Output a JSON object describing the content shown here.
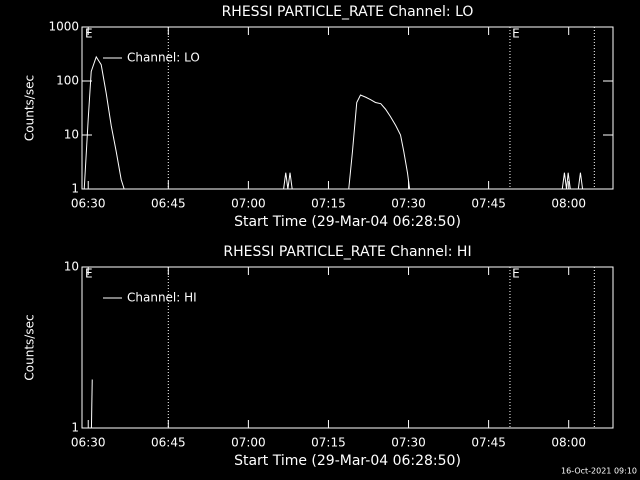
{
  "footer": "16-Oct-2021 09:10",
  "chart_data": [
    {
      "type": "line",
      "title": "RHESSI PARTICLE_RATE Channel: LO",
      "xlabel": "Start Time (29-Mar-04 06:28:50)",
      "ylabel": "Counts/sec",
      "log_y": true,
      "legend": "top-left",
      "xlim": [
        388.833,
        488.3
      ],
      "ylim": [
        1,
        1000
      ],
      "xticks": [
        {
          "value": 390,
          "label": "06:30"
        },
        {
          "value": 405,
          "label": "06:45"
        },
        {
          "value": 420,
          "label": "07:00"
        },
        {
          "value": 435,
          "label": "07:15"
        },
        {
          "value": 450,
          "label": "07:30"
        },
        {
          "value": 465,
          "label": "07:45"
        },
        {
          "value": 480,
          "label": "08:00"
        }
      ],
      "yticks": [
        1,
        10,
        100,
        1000
      ],
      "vlines": [
        405,
        469,
        484.8
      ],
      "annotations": [
        {
          "x": 389.4,
          "text": "E"
        },
        {
          "x": 469.4,
          "text": "E"
        }
      ],
      "series": [
        {
          "name": "Channel: LO",
          "color": "#ffffff",
          "x": [
            389.25,
            390,
            390.56,
            391.5,
            392.43,
            393.36,
            394.3,
            395.23,
            396.17,
            396.73,
            null,
            426.6,
            427,
            427.4,
            427.8,
            428.2,
            null,
            438.8,
            439.5,
            440.3,
            441,
            442,
            442.9,
            443.8,
            444.8,
            445.7,
            446.6,
            447.6,
            448.5,
            449.1,
            449.8,
            450.2,
            null,
            478.8,
            479.2,
            479.6,
            479.9,
            480.3,
            null,
            481.8,
            482.2,
            482.6
          ],
          "values": [
            1,
            20,
            150,
            280,
            200,
            60,
            15,
            5,
            1.5,
            1,
            null,
            1,
            2,
            1,
            2,
            1,
            null,
            1,
            5,
            40,
            55,
            50,
            45,
            40,
            38,
            30,
            22,
            15,
            10,
            5,
            2,
            1,
            null,
            1,
            2,
            1,
            2,
            1,
            null,
            1,
            2,
            1
          ]
        }
      ]
    },
    {
      "type": "line",
      "title": "RHESSI PARTICLE_RATE Channel: HI",
      "xlabel": "Start Time (29-Mar-04 06:28:50)",
      "ylabel": "Counts/sec",
      "log_y": true,
      "legend": "top-left",
      "xlim": [
        388.833,
        488.3
      ],
      "ylim": [
        1,
        10
      ],
      "xticks": [
        {
          "value": 390,
          "label": "06:30"
        },
        {
          "value": 405,
          "label": "06:45"
        },
        {
          "value": 420,
          "label": "07:00"
        },
        {
          "value": 435,
          "label": "07:15"
        },
        {
          "value": 450,
          "label": "07:30"
        },
        {
          "value": 465,
          "label": "07:45"
        },
        {
          "value": 480,
          "label": "08:00"
        }
      ],
      "yticks": [
        1,
        10
      ],
      "vlines": [
        405,
        469,
        484.8
      ],
      "annotations": [
        {
          "x": 389.4,
          "text": "E"
        },
        {
          "x": 469.4,
          "text": "E"
        }
      ],
      "series": [
        {
          "name": "Channel: HI",
          "color": "#ffffff",
          "x": [
            390.6,
            390.75
          ],
          "values": [
            1,
            2
          ]
        }
      ]
    }
  ]
}
